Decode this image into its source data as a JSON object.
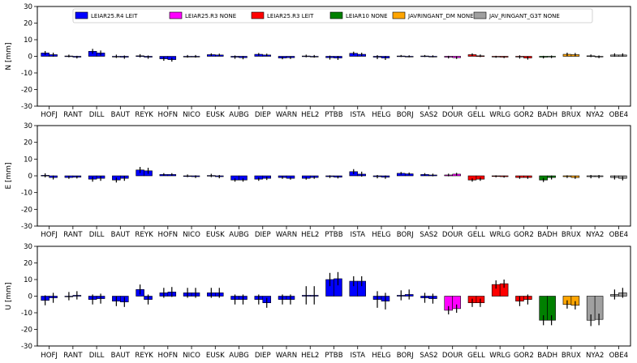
{
  "chart_data": [
    {
      "type": "bar",
      "ylabel": "N [mm]",
      "ylim": [
        -30,
        30
      ],
      "yticks": [
        30,
        20,
        10,
        0,
        -10,
        -20,
        -30
      ],
      "grid": false,
      "legend_position": "top",
      "legend": [
        {
          "label": "LEIAR25.R4 LEIT",
          "color": "#0000ff"
        },
        {
          "label": "LEIAR25.R3 NONE",
          "color": "#ff00ff"
        },
        {
          "label": "LEIAR25.R3 LEIT",
          "color": "#ff0000"
        },
        {
          "label": "LEIAR10 NONE",
          "color": "#008000"
        },
        {
          "label": "JAVRINGANT_DM NONE",
          "color": "#ffa500"
        },
        {
          "label": "JAV_RINGANT_G3T NONE",
          "color": "#a0a0a0"
        }
      ],
      "categories": [
        "HOFJ",
        "RANT",
        "DILL",
        "BAUT",
        "REYK",
        "HOFN",
        "NICO",
        "EUSK",
        "AUBG",
        "DIEP",
        "WARN",
        "HEL2",
        "PTBB",
        "ISTA",
        "HELG",
        "BORJ",
        "SAS2",
        "DOUR",
        "GELL",
        "WRLG",
        "GOR2",
        "BADH",
        "BRUX",
        "NYA2",
        "OBE4"
      ],
      "colors": [
        "#0000ff",
        "#0000ff",
        "#0000ff",
        "#0000ff",
        "#0000ff",
        "#0000ff",
        "#0000ff",
        "#0000ff",
        "#0000ff",
        "#0000ff",
        "#0000ff",
        "#0000ff",
        "#0000ff",
        "#0000ff",
        "#0000ff",
        "#0000ff",
        "#0000ff",
        "#ff00ff",
        "#ff0000",
        "#ff0000",
        "#ff0000",
        "#008000",
        "#ffa500",
        "#a0a0a0",
        "#a0a0a0"
      ],
      "series": [
        {
          "values": [
            2.0,
            0.2,
            3.0,
            0.0,
            0.3,
            -1.5,
            0.0,
            1.0,
            -0.5,
            1.2,
            -1.0,
            0.2,
            -0.8,
            1.8,
            -0.5,
            0.2,
            0.2,
            -0.5,
            1.0,
            -0.3,
            -0.4,
            -0.5,
            1.2,
            0.3,
            0.8
          ]
        },
        {
          "values": [
            1.0,
            -0.5,
            2.0,
            -0.5,
            -0.5,
            -2.0,
            0.0,
            0.8,
            -0.8,
            0.8,
            -0.8,
            0.0,
            -1.0,
            1.2,
            -1.0,
            0.0,
            0.0,
            -0.8,
            0.3,
            -0.5,
            -1.0,
            -0.3,
            1.0,
            -0.3,
            0.8
          ]
        }
      ]
    },
    {
      "type": "bar",
      "ylabel": "E [mm]",
      "ylim": [
        -30,
        30
      ],
      "yticks": [
        30,
        20,
        10,
        0,
        -10,
        -20,
        -30
      ],
      "grid": false,
      "categories": [
        "HOFJ",
        "RANT",
        "DILL",
        "BAUT",
        "REYK",
        "HOFN",
        "NICO",
        "EUSK",
        "AUBG",
        "DIEP",
        "WARN",
        "HEL2",
        "PTBB",
        "ISTA",
        "HELG",
        "BORJ",
        "SAS2",
        "DOUR",
        "GELL",
        "WRLG",
        "GOR2",
        "BADH",
        "BRUX",
        "NYA2",
        "OBE4"
      ],
      "colors": [
        "#0000ff",
        "#0000ff",
        "#0000ff",
        "#0000ff",
        "#0000ff",
        "#0000ff",
        "#0000ff",
        "#0000ff",
        "#0000ff",
        "#0000ff",
        "#0000ff",
        "#0000ff",
        "#0000ff",
        "#0000ff",
        "#0000ff",
        "#0000ff",
        "#0000ff",
        "#ff00ff",
        "#ff0000",
        "#ff0000",
        "#ff0000",
        "#008000",
        "#ffa500",
        "#a0a0a0",
        "#a0a0a0"
      ],
      "series": [
        {
          "values": [
            0.3,
            -1.0,
            -2.0,
            -2.5,
            3.5,
            0.8,
            0.0,
            0.2,
            -2.5,
            -2.0,
            -1.0,
            -1.5,
            -0.5,
            2.5,
            -0.5,
            1.5,
            0.8,
            0.5,
            -2.5,
            -0.3,
            -1.0,
            -2.5,
            -0.5,
            -0.5,
            -1.0
          ]
        },
        {
          "values": [
            -1.0,
            -0.8,
            -1.5,
            -1.5,
            3.0,
            0.8,
            -0.5,
            -0.5,
            -2.5,
            -1.5,
            -1.5,
            -1.0,
            -0.8,
            1.0,
            -0.8,
            1.2,
            0.5,
            1.0,
            -2.0,
            -0.5,
            -1.0,
            -1.0,
            -1.0,
            -0.5,
            -1.5
          ]
        }
      ]
    },
    {
      "type": "bar",
      "ylabel": "U [mm]",
      "ylim": [
        -30,
        30
      ],
      "yticks": [
        30,
        20,
        10,
        0,
        -10,
        -20,
        -30
      ],
      "grid": false,
      "categories": [
        "HOFJ",
        "RANT",
        "DILL",
        "BAUT",
        "REYK",
        "HOFN",
        "NICO",
        "EUSK",
        "AUBG",
        "DIEP",
        "WARN",
        "HEL2",
        "PTBB",
        "ISTA",
        "HELG",
        "BORJ",
        "SAS2",
        "DOUR",
        "GELL",
        "WRLG",
        "GOR2",
        "BADH",
        "BRUX",
        "NYA2",
        "OBE4"
      ],
      "colors": [
        "#0000ff",
        "#0000ff",
        "#0000ff",
        "#0000ff",
        "#0000ff",
        "#0000ff",
        "#0000ff",
        "#0000ff",
        "#0000ff",
        "#0000ff",
        "#0000ff",
        "#0000ff",
        "#0000ff",
        "#0000ff",
        "#0000ff",
        "#0000ff",
        "#0000ff",
        "#ff00ff",
        "#ff0000",
        "#ff0000",
        "#ff0000",
        "#008000",
        "#ffa500",
        "#a0a0a0",
        "#a0a0a0"
      ],
      "series": [
        {
          "values": [
            -2.5,
            0.0,
            -2.0,
            -3.0,
            4.0,
            2.0,
            2.0,
            2.0,
            -2.0,
            -2.0,
            -2.0,
            0.5,
            10.0,
            9.0,
            -2.0,
            0.5,
            -1.0,
            -8.5,
            -4.0,
            7.0,
            -3.0,
            -14.5,
            -5.0,
            -14.5,
            1.0
          ]
        },
        {
          "values": [
            -1.0,
            0.5,
            -1.5,
            -3.5,
            -2.0,
            2.5,
            2.0,
            2.0,
            -2.0,
            -4.0,
            -2.0,
            0.5,
            10.5,
            9.0,
            -3.0,
            1.0,
            -1.5,
            -7.5,
            -4.0,
            7.5,
            -2.0,
            -14.5,
            -5.5,
            -14.0,
            2.0
          ]
        }
      ]
    }
  ]
}
